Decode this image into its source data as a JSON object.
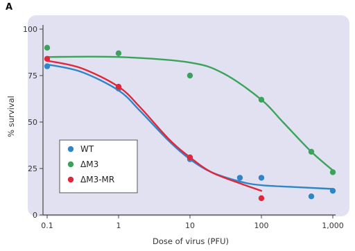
{
  "panel_label": "A",
  "chart_data": {
    "type": "scatter",
    "title": "",
    "xlabel": "Dose of virus (PFU)",
    "ylabel": "% survival",
    "xscale": "log",
    "xlim": [
      0.1,
      1000
    ],
    "ylim": [
      0,
      100
    ],
    "x_ticks": [
      0.1,
      1,
      10,
      100,
      1000
    ],
    "x_tick_labels": [
      "0.1",
      "1",
      "10",
      "100",
      "1,000"
    ],
    "y_ticks": [
      0,
      25,
      50,
      75,
      100
    ],
    "y_tick_labels": [
      "0",
      "25",
      "50",
      "75",
      "100"
    ],
    "grid": false,
    "legend": "bottom-left",
    "background": "#e2e1f1",
    "series": [
      {
        "name": "WT",
        "color": "#2e86c8",
        "points": [
          {
            "x": 0.1,
            "y": 80
          },
          {
            "x": 1,
            "y": 68
          },
          {
            "x": 10,
            "y": 30
          },
          {
            "x": 50,
            "y": 20
          },
          {
            "x": 100,
            "y": 20
          },
          {
            "x": 500,
            "y": 10
          },
          {
            "x": 1000,
            "y": 13
          }
        ],
        "curve": [
          {
            "x": 0.1,
            "y": 81
          },
          {
            "x": 0.3,
            "y": 77
          },
          {
            "x": 1,
            "y": 67
          },
          {
            "x": 2,
            "y": 56
          },
          {
            "x": 5,
            "y": 40
          },
          {
            "x": 10,
            "y": 30
          },
          {
            "x": 20,
            "y": 23
          },
          {
            "x": 50,
            "y": 18
          },
          {
            "x": 100,
            "y": 16
          },
          {
            "x": 300,
            "y": 15
          },
          {
            "x": 1000,
            "y": 14
          }
        ]
      },
      {
        "name": "ΔM3",
        "color": "#3aa35a",
        "points": [
          {
            "x": 0.1,
            "y": 90
          },
          {
            "x": 1,
            "y": 87
          },
          {
            "x": 10,
            "y": 75
          },
          {
            "x": 100,
            "y": 62
          },
          {
            "x": 500,
            "y": 34
          },
          {
            "x": 1000,
            "y": 23
          }
        ],
        "curve": [
          {
            "x": 0.1,
            "y": 85
          },
          {
            "x": 1,
            "y": 85
          },
          {
            "x": 10,
            "y": 82
          },
          {
            "x": 30,
            "y": 76
          },
          {
            "x": 100,
            "y": 62
          },
          {
            "x": 200,
            "y": 50
          },
          {
            "x": 500,
            "y": 34
          },
          {
            "x": 1000,
            "y": 24
          }
        ]
      },
      {
        "name": "ΔM3-MR",
        "color": "#e0283c",
        "points": [
          {
            "x": 0.1,
            "y": 84
          },
          {
            "x": 1,
            "y": 69
          },
          {
            "x": 10,
            "y": 31
          },
          {
            "x": 100,
            "y": 9
          }
        ],
        "curve": [
          {
            "x": 0.1,
            "y": 83
          },
          {
            "x": 0.3,
            "y": 79
          },
          {
            "x": 1,
            "y": 69
          },
          {
            "x": 2,
            "y": 58
          },
          {
            "x": 5,
            "y": 41
          },
          {
            "x": 10,
            "y": 31
          },
          {
            "x": 20,
            "y": 23
          },
          {
            "x": 50,
            "y": 17
          },
          {
            "x": 100,
            "y": 13
          }
        ]
      }
    ]
  }
}
